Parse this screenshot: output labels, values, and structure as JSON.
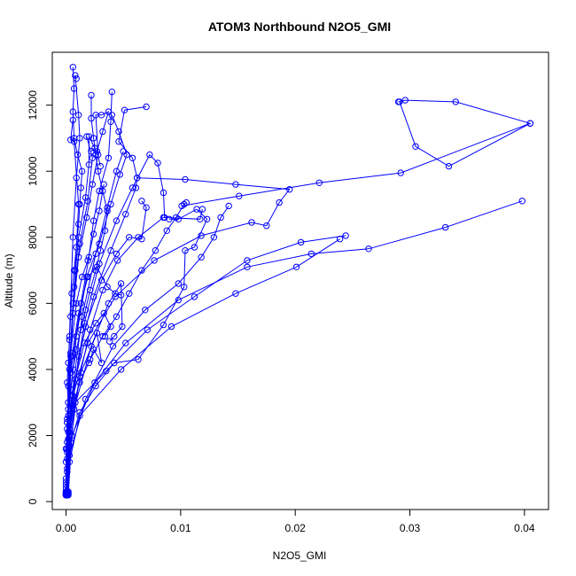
{
  "chart_data": {
    "type": "line",
    "title": "ATOM3 Northbound N2O5_GMI",
    "xlabel": "N2O5_GMI",
    "ylabel": "Altitude (m)",
    "xlim": [
      -0.0012,
      0.0421
    ],
    "ylim": [
      -240,
      13600
    ],
    "xticks": [
      0.0,
      0.01,
      0.02,
      0.03,
      0.04
    ],
    "xtick_labels": [
      "0.00",
      "0.01",
      "0.02",
      "0.03",
      "0.04"
    ],
    "yticks": [
      0,
      2000,
      4000,
      6000,
      8000,
      10000,
      12000
    ],
    "ytick_labels": [
      "0",
      "2000",
      "4000",
      "6000",
      "8000",
      "10000",
      "12000"
    ],
    "grid": false,
    "series_color": "#0000ff",
    "series": [
      {
        "values": [
          [
            0.0,
            200
          ],
          [
            0.0,
            400
          ],
          [
            0.0,
            700
          ],
          [
            0.0,
            1200
          ],
          [
            0.0001,
            1800
          ],
          [
            0.0001,
            2400
          ],
          [
            0.0002,
            3000
          ],
          [
            0.0001,
            3600
          ],
          [
            0.0002,
            4200
          ],
          [
            0.0003,
            4900
          ],
          [
            0.0004,
            5600
          ],
          [
            0.0005,
            6300
          ],
          [
            0.0007,
            7000
          ],
          [
            0.0009,
            7700
          ],
          [
            0.0011,
            8400
          ],
          [
            0.0012,
            9000
          ],
          [
            0.0013,
            9500
          ],
          [
            0.0014,
            10000
          ],
          [
            0.001,
            10500
          ],
          [
            0.0007,
            11000
          ],
          [
            0.0006,
            11800
          ],
          [
            0.0007,
            12500
          ],
          [
            0.0006,
            13150
          ]
        ]
      },
      {
        "values": [
          [
            0.0,
            200
          ],
          [
            0.0,
            500
          ],
          [
            0.0001,
            1000
          ],
          [
            0.0,
            1600
          ],
          [
            0.0001,
            2200
          ],
          [
            0.0002,
            2800
          ],
          [
            0.0004,
            3400
          ],
          [
            0.0006,
            4000
          ],
          [
            0.0009,
            4600
          ],
          [
            0.0013,
            5200
          ],
          [
            0.0017,
            5800
          ],
          [
            0.0021,
            6400
          ],
          [
            0.0026,
            7000
          ],
          [
            0.003,
            7600
          ],
          [
            0.0034,
            8200
          ],
          [
            0.0036,
            8800
          ],
          [
            0.0032,
            9400
          ],
          [
            0.0028,
            10000
          ],
          [
            0.0026,
            10500
          ],
          [
            0.0024,
            11000
          ],
          [
            0.0022,
            11600
          ],
          [
            0.0022,
            12300
          ]
        ]
      },
      {
        "values": [
          [
            0.0,
            250
          ],
          [
            0.0,
            600
          ],
          [
            0.0001,
            1300
          ],
          [
            0.0002,
            2100
          ],
          [
            0.0006,
            2900
          ],
          [
            0.0012,
            3600
          ],
          [
            0.0021,
            4300
          ],
          [
            0.0032,
            5000
          ],
          [
            0.0044,
            5600
          ],
          [
            0.0055,
            6300
          ],
          [
            0.0066,
            7000
          ],
          [
            0.0078,
            7600
          ],
          [
            0.0088,
            8200
          ],
          [
            0.0096,
            8600
          ],
          [
            0.0103,
            9000
          ],
          [
            0.0105,
            9050
          ]
        ]
      },
      {
        "values": [
          [
            0.0,
            200
          ],
          [
            0.0001,
            900
          ],
          [
            0.0004,
            1800
          ],
          [
            0.0012,
            2700
          ],
          [
            0.0026,
            3500
          ],
          [
            0.0042,
            4200
          ],
          [
            0.0063,
            4300
          ],
          [
            0.0085,
            5350
          ],
          [
            0.0103,
            6500
          ],
          [
            0.0104,
            7600
          ],
          [
            0.0112,
            7700
          ],
          [
            0.0123,
            8550
          ],
          [
            0.0114,
            8850
          ],
          [
            0.0098,
            8550
          ],
          [
            0.009,
            8550
          ]
        ]
      },
      {
        "values": [
          [
            0.0002,
            300
          ],
          [
            0.0001,
            1500
          ],
          [
            0.0008,
            3000
          ],
          [
            0.0035,
            3950
          ],
          [
            0.0071,
            5200
          ],
          [
            0.0112,
            6200
          ],
          [
            0.0158,
            7300
          ],
          [
            0.0205,
            7850
          ],
          [
            0.0244,
            8050
          ]
        ]
      },
      {
        "values": [
          [
            0.0002,
            250
          ],
          [
            0.0003,
            1200
          ],
          [
            0.0012,
            2600
          ],
          [
            0.0048,
            4000
          ],
          [
            0.0092,
            5300
          ],
          [
            0.0148,
            6300
          ],
          [
            0.0201,
            7100
          ],
          [
            0.0239,
            7950
          ]
        ]
      },
      {
        "values": [
          [
            0.0002,
            200
          ],
          [
            0.0005,
            2000
          ],
          [
            0.0025,
            3600
          ],
          [
            0.0052,
            4800
          ],
          [
            0.0098,
            6100
          ],
          [
            0.0158,
            7100
          ],
          [
            0.0214,
            7500
          ],
          [
            0.0264,
            7650
          ],
          [
            0.0331,
            8300
          ],
          [
            0.0398,
            9100
          ]
        ]
      },
      {
        "values": [
          [
            0.0001,
            200
          ],
          [
            0.0003,
            1400
          ],
          [
            0.0017,
            3100
          ],
          [
            0.0041,
            4700
          ],
          [
            0.0069,
            5800
          ],
          [
            0.0098,
            6600
          ],
          [
            0.0118,
            7400
          ],
          [
            0.0129,
            8000
          ],
          [
            0.0135,
            8600
          ],
          [
            0.0142,
            8950
          ]
        ]
      },
      {
        "values": [
          [
            0.0,
            300
          ],
          [
            0.0001,
            1600
          ],
          [
            0.0006,
            3200
          ],
          [
            0.0019,
            4800
          ],
          [
            0.0043,
            6200
          ],
          [
            0.0077,
            7300
          ],
          [
            0.0118,
            8050
          ],
          [
            0.0162,
            8450
          ],
          [
            0.0175,
            8350
          ],
          [
            0.0186,
            9050
          ],
          [
            0.0195,
            9450
          ],
          [
            0.0148,
            9600
          ],
          [
            0.0104,
            9750
          ],
          [
            0.0062,
            9800
          ]
        ]
      },
      {
        "values": [
          [
            0.0001,
            200
          ],
          [
            0.0004,
            1800
          ],
          [
            0.0012,
            3800
          ],
          [
            0.0021,
            5200
          ],
          [
            0.0032,
            6400
          ],
          [
            0.0045,
            7300
          ],
          [
            0.0063,
            8000
          ],
          [
            0.0085,
            8600
          ],
          [
            0.0117,
            8550
          ],
          [
            0.0119,
            8850
          ]
        ]
      },
      {
        "values": [
          [
            0.0001,
            250
          ],
          [
            0.0003,
            2100
          ],
          [
            0.0011,
            4400
          ],
          [
            0.0024,
            6200
          ],
          [
            0.0039,
            7600
          ],
          [
            0.0052,
            8700
          ],
          [
            0.0061,
            9500
          ],
          [
            0.0062,
            9800
          ],
          [
            0.0058,
            10400
          ],
          [
            0.0046,
            10900
          ],
          [
            0.0051,
            11850
          ],
          [
            0.007,
            11950
          ]
        ]
      },
      {
        "values": [
          [
            0.0,
            200
          ],
          [
            0.0006,
            3200
          ],
          [
            0.0016,
            5400
          ],
          [
            0.0029,
            7200
          ],
          [
            0.0044,
            8500
          ],
          [
            0.0058,
            9500
          ],
          [
            0.0073,
            10500
          ],
          [
            0.008,
            10250
          ],
          [
            0.0085,
            9350
          ],
          [
            0.0086,
            8600
          ]
        ]
      },
      {
        "values": [
          [
            0.0001,
            200
          ],
          [
            0.0002,
            2600
          ],
          [
            0.0009,
            5000
          ],
          [
            0.0018,
            6800
          ],
          [
            0.0029,
            7800
          ],
          [
            0.0039,
            9000
          ],
          [
            0.0047,
            9900
          ],
          [
            0.0053,
            10500
          ],
          [
            0.0046,
            11200
          ],
          [
            0.004,
            11700
          ]
        ]
      },
      {
        "values": [
          [
            0.0,
            200
          ],
          [
            0.0004,
            3900
          ],
          [
            0.0013,
            6000
          ],
          [
            0.002,
            7400
          ],
          [
            0.0024,
            8500
          ],
          [
            0.0029,
            9400
          ],
          [
            0.0037,
            10400
          ],
          [
            0.0039,
            11500
          ],
          [
            0.004,
            12400
          ]
        ]
      },
      {
        "values": [
          [
            0.0,
            250
          ],
          [
            0.0002,
            3000
          ],
          [
            0.0006,
            5700
          ],
          [
            0.0011,
            7400
          ],
          [
            0.0018,
            8600
          ],
          [
            0.0023,
            9600
          ],
          [
            0.0028,
            10500
          ],
          [
            0.0026,
            11700
          ],
          [
            0.0031,
            11700
          ],
          [
            0.0037,
            11800
          ],
          [
            0.0032,
            11200
          ],
          [
            0.0027,
            10600
          ],
          [
            0.003,
            10150
          ]
        ]
      },
      {
        "values": [
          [
            0.0,
            200
          ],
          [
            0.0003,
            4000
          ],
          [
            0.0007,
            6500
          ],
          [
            0.0011,
            8000
          ],
          [
            0.0017,
            9200
          ],
          [
            0.002,
            10200
          ],
          [
            0.002,
            11050
          ],
          [
            0.0025,
            10700
          ],
          [
            0.0022,
            10600
          ]
        ]
      },
      {
        "values": [
          [
            0.0,
            300
          ],
          [
            0.0002,
            3500
          ],
          [
            0.0006,
            6000
          ],
          [
            0.0012,
            7800
          ],
          [
            0.0019,
            9100
          ],
          [
            0.0023,
            10400
          ],
          [
            0.0018,
            11050
          ]
        ]
      },
      {
        "values": [
          [
            0.0,
            200
          ],
          [
            0.0004,
            4400
          ],
          [
            0.0008,
            7000
          ],
          [
            0.0011,
            9000
          ],
          [
            0.0007,
            10900
          ],
          [
            0.0004,
            10950
          ],
          [
            0.0006,
            11550
          ]
        ]
      },
      {
        "values": [
          [
            0.0,
            200
          ],
          [
            0.0003,
            5000
          ],
          [
            0.0006,
            8000
          ],
          [
            0.0009,
            9800
          ],
          [
            0.0012,
            11000
          ],
          [
            0.0011,
            11700
          ],
          [
            0.0008,
            12900
          ],
          [
            0.0009,
            12800
          ]
        ]
      },
      {
        "values": [
          [
            0.0,
            300
          ],
          [
            0.0005,
            3200
          ],
          [
            0.0017,
            5300
          ],
          [
            0.0031,
            6700
          ],
          [
            0.0044,
            7500
          ],
          [
            0.0055,
            8000
          ],
          [
            0.0066,
            7950
          ],
          [
            0.007,
            8900
          ],
          [
            0.0066,
            9100
          ]
        ]
      },
      {
        "values": [
          [
            0.0001,
            200
          ],
          [
            0.0007,
            2800
          ],
          [
            0.0022,
            4700
          ],
          [
            0.0037,
            6000
          ],
          [
            0.0048,
            6600
          ],
          [
            0.0049,
            5300
          ],
          [
            0.0042,
            5000
          ],
          [
            0.0038,
            4850
          ]
        ]
      },
      {
        "values": [
          [
            0.0001,
            300
          ],
          [
            0.0003,
            2200
          ],
          [
            0.0013,
            3900
          ],
          [
            0.0027,
            5100
          ],
          [
            0.0031,
            4200
          ],
          [
            0.0024,
            4600
          ],
          [
            0.002,
            4200
          ]
        ]
      },
      {
        "values": [
          [
            0.0,
            250
          ],
          [
            0.0001,
            2500
          ],
          [
            0.0005,
            4400
          ],
          [
            0.0011,
            5700
          ],
          [
            0.0019,
            6800
          ],
          [
            0.0027,
            7100
          ],
          [
            0.0036,
            6500
          ],
          [
            0.0043,
            6300
          ],
          [
            0.0048,
            6250
          ]
        ]
      },
      {
        "values": [
          [
            0.0,
            200
          ],
          [
            0.0002,
            1900
          ],
          [
            0.0008,
            3700
          ],
          [
            0.0016,
            4800
          ],
          [
            0.0026,
            5400
          ],
          [
            0.0033,
            5700
          ],
          [
            0.0039,
            5300
          ],
          [
            0.0034,
            5000
          ]
        ]
      },
      {
        "values": [
          [
            0.0,
            200
          ],
          [
            0.0001,
            2400
          ],
          [
            0.0004,
            4500
          ],
          [
            0.0009,
            6000
          ],
          [
            0.0014,
            6800
          ],
          [
            0.0019,
            7300
          ],
          [
            0.0024,
            8100
          ],
          [
            0.0029,
            8800
          ],
          [
            0.0033,
            9600
          ]
        ]
      },
      {
        "values": [
          [
            0.0,
            250
          ],
          [
            0.0004,
            2900
          ],
          [
            0.0014,
            5600
          ],
          [
            0.0026,
            7500
          ],
          [
            0.0036,
            8900
          ],
          [
            0.0044,
            10000
          ],
          [
            0.005,
            10600
          ]
        ]
      },
      {
        "values": [
          [
            0.029,
            12100
          ],
          [
            0.0296,
            12150
          ],
          [
            0.034,
            12100
          ],
          [
            0.0405,
            11450
          ],
          [
            0.0334,
            10150
          ],
          [
            0.0305,
            10750
          ],
          [
            0.0291,
            12100
          ]
        ]
      },
      {
        "values": [
          [
            0.0405,
            11450
          ],
          [
            0.0292,
            9950
          ],
          [
            0.0221,
            9650
          ],
          [
            0.0151,
            9250
          ],
          [
            0.0101,
            8950
          ]
        ]
      }
    ]
  }
}
